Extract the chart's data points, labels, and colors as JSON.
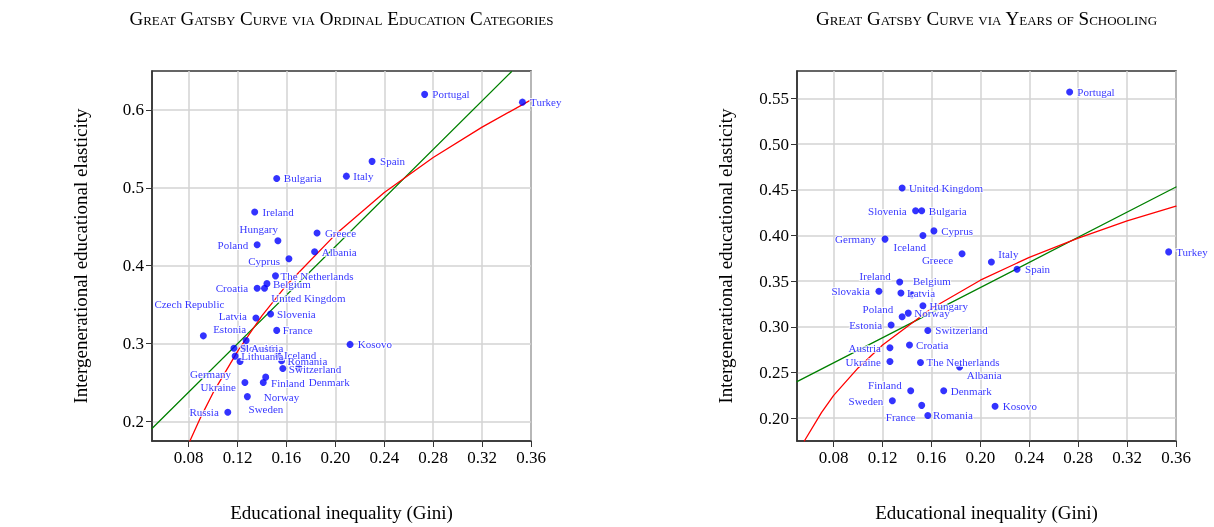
{
  "chart_data": [
    {
      "type": "scatter",
      "title": "Great Gatsby Curve via Ordinal Education Categories",
      "xlabel": "Educational inequality (Gini)",
      "ylabel": "Intergenerational educational elasticity",
      "xlim": [
        0.05,
        0.36
      ],
      "ylim": [
        0.175,
        0.65
      ],
      "xticks": [
        0.08,
        0.12,
        0.16,
        {
          "value": 0.2,
          "label": "0.20"
        },
        0.24,
        0.28,
        0.32,
        0.36
      ],
      "yticks": [
        0.2,
        0.3,
        0.4,
        0.5,
        0.6
      ],
      "grid": true,
      "marker": "circle",
      "series": [
        {
          "type": "scatter",
          "color": "#0000ff",
          "x": [
            0.273,
            0.353,
            0.23,
            0.209,
            0.152,
            0.134,
            0.185,
            0.153,
            0.136,
            0.183,
            0.162,
            0.151,
            0.144,
            0.136,
            0.142,
            0.147,
            0.135,
            0.152,
            0.092,
            0.127,
            0.117,
            0.126,
            0.212,
            0.118,
            0.153,
            0.122,
            0.156,
            0.157,
            0.17,
            0.143,
            0.126,
            0.141,
            0.128,
            0.112
          ],
          "values": [
            0.62,
            0.61,
            0.534,
            0.515,
            0.512,
            0.469,
            0.442,
            0.432,
            0.427,
            0.418,
            0.409,
            0.387,
            0.377,
            0.371,
            0.371,
            0.338,
            0.333,
            0.317,
            0.31,
            0.304,
            0.294,
            0.295,
            0.299,
            0.284,
            0.285,
            0.277,
            0.278,
            0.268,
            0.269,
            0.257,
            0.25,
            0.25,
            0.232,
            0.212
          ],
          "value_labels": [
            "Portugal",
            "Turkey",
            "Spain",
            "Italy",
            "Bulgaria",
            "Ireland",
            "Greece",
            "Hungary",
            "Poland",
            "Albania",
            "Cyprus",
            "The Netherlands",
            "Belgium",
            "Croatia",
            "United Kingdom",
            "Slovenia",
            "Latvia",
            "France",
            "Czech Republic",
            "Estonia",
            "Slovakia",
            "Austria",
            "Kosovo",
            "Lithuania",
            "Iceland",
            "Germany",
            "Romania",
            "Switzerland",
            "Denmark",
            "Finland",
            "Ukraine",
            "Norway",
            "Sweden",
            "Russia"
          ]
        },
        {
          "type": "line",
          "color": "#008000",
          "marker": "none",
          "x": [
            0.05,
            0.344
          ],
          "values": [
            0.191,
            0.649
          ]
        },
        {
          "type": "line",
          "color": "#ff0000",
          "marker": "none",
          "x": [
            0.081,
            0.09,
            0.1,
            0.12,
            0.14,
            0.16,
            0.2,
            0.24,
            0.28,
            0.32,
            0.36
          ],
          "values": [
            0.175,
            0.206,
            0.237,
            0.29,
            0.336,
            0.375,
            0.44,
            0.494,
            0.539,
            0.578,
            0.613
          ]
        }
      ]
    },
    {
      "type": "scatter",
      "title": "Great Gatsby Curve via Years of Schooling",
      "xlabel": "Educational inequality (Gini)",
      "ylabel": "Intergenerational educational elasticity",
      "xlim": [
        0.05,
        0.36
      ],
      "ylim": [
        0.175,
        0.58
      ],
      "xticks": [
        0.08,
        0.12,
        0.16,
        {
          "value": 0.2,
          "label": "0.20"
        },
        0.24,
        0.28,
        0.32,
        0.36
      ],
      "yticks": [
        {
          "value": 0.2,
          "label": "0.20"
        },
        0.25,
        {
          "value": 0.3,
          "label": "0.30"
        },
        0.35,
        {
          "value": 0.4,
          "label": "0.40"
        },
        0.45,
        {
          "value": 0.5,
          "label": "0.50"
        },
        0.55
      ],
      "grid": true,
      "marker": "circle",
      "series": [
        {
          "type": "scatter",
          "color": "#0000ff",
          "x": [
            0.273,
            0.354,
            0.136,
            0.147,
            0.152,
            0.162,
            0.153,
            0.122,
            0.185,
            0.209,
            0.23,
            0.134,
            0.117,
            0.135,
            0.144,
            0.153,
            0.141,
            0.136,
            0.127,
            0.157,
            0.142,
            0.126,
            0.126,
            0.151,
            0.183,
            0.143,
            0.17,
            0.128,
            0.152,
            0.212,
            0.157
          ],
          "values": [
            0.557,
            0.382,
            0.452,
            0.427,
            0.427,
            0.405,
            0.4,
            0.396,
            0.38,
            0.371,
            0.363,
            0.349,
            0.339,
            0.337,
            0.335,
            0.323,
            0.315,
            0.311,
            0.302,
            0.296,
            0.28,
            0.277,
            0.262,
            0.261,
            0.256,
            0.23,
            0.23,
            0.219,
            0.214,
            0.213,
            0.203
          ],
          "value_labels": [
            "Portugal",
            "Turkey",
            "United Kingdom",
            "Slovenia",
            "Bulgaria",
            "Cyprus",
            "Iceland",
            "Germany",
            "Greece",
            "Italy",
            "Spain",
            "Ireland",
            "Slovakia",
            "Latvia",
            "Belgium",
            "Hungary",
            "Norway",
            "Poland",
            "Estonia",
            "Switzerland",
            "Croatia",
            "Austria",
            "Ukraine",
            "The Netherlands",
            "Albania",
            "Finland",
            "Denmark",
            "Sweden",
            "France",
            "Kosovo",
            "Romania"
          ]
        },
        {
          "type": "line",
          "color": "#008000",
          "marker": "none",
          "x": [
            0.05,
            0.36
          ],
          "values": [
            0.24,
            0.453
          ]
        },
        {
          "type": "line",
          "color": "#ff0000",
          "marker": "none",
          "x": [
            0.056,
            0.07,
            0.08,
            0.1,
            0.12,
            0.16,
            0.2,
            0.24,
            0.28,
            0.32,
            0.36
          ],
          "values": [
            0.175,
            0.206,
            0.225,
            0.255,
            0.28,
            0.32,
            0.351,
            0.376,
            0.397,
            0.416,
            0.432
          ]
        }
      ]
    }
  ]
}
